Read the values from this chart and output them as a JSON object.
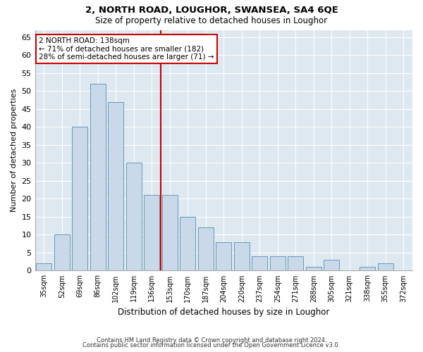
{
  "title1": "2, NORTH ROAD, LOUGHOR, SWANSEA, SA4 6QE",
  "title2": "Size of property relative to detached houses in Loughor",
  "xlabel": "Distribution of detached houses by size in Loughor",
  "ylabel": "Number of detached properties",
  "categories": [
    "35sqm",
    "52sqm",
    "69sqm",
    "86sqm",
    "102sqm",
    "119sqm",
    "136sqm",
    "153sqm",
    "170sqm",
    "187sqm",
    "204sqm",
    "220sqm",
    "237sqm",
    "254sqm",
    "271sqm",
    "288sqm",
    "305sqm",
    "321sqm",
    "338sqm",
    "355sqm",
    "372sqm"
  ],
  "values": [
    2,
    10,
    40,
    52,
    47,
    30,
    21,
    21,
    15,
    12,
    8,
    8,
    4,
    4,
    4,
    1,
    3,
    0,
    1,
    2,
    0
  ],
  "bar_color": "#c9d9e9",
  "bar_edge_color": "#6699bb",
  "reference_line_x": 6.5,
  "annotation_line1": "2 NORTH ROAD: 138sqm",
  "annotation_line2": "← 71% of detached houses are smaller (182)",
  "annotation_line3": "28% of semi-detached houses are larger (71) →",
  "annotation_box_color": "#ffffff",
  "annotation_box_edge": "#cc0000",
  "ref_line_color": "#cc0000",
  "ylim": [
    0,
    67
  ],
  "yticks": [
    0,
    5,
    10,
    15,
    20,
    25,
    30,
    35,
    40,
    45,
    50,
    55,
    60,
    65
  ],
  "bg_color": "#dde8f0",
  "grid_color": "#ffffff",
  "fig_bg_color": "#ffffff",
  "footer1": "Contains HM Land Registry data © Crown copyright and database right 2024.",
  "footer2": "Contains public sector information licensed under the Open Government Licence v3.0."
}
